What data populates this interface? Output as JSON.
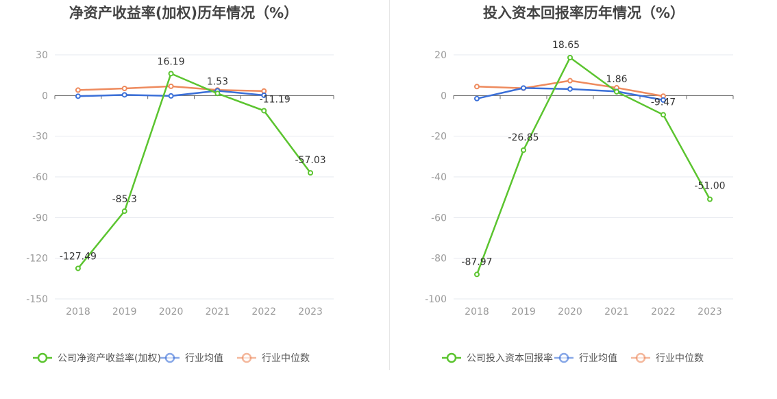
{
  "chart_data": [
    {
      "type": "line",
      "title": "净资产收益率(加权)历年情况（%）",
      "categories": [
        "2018",
        "2019",
        "2020",
        "2021",
        "2022",
        "2023"
      ],
      "ylim": [
        -150,
        30
      ],
      "yticks": [
        30,
        0,
        -30,
        -60,
        -90,
        -120,
        -150
      ],
      "grid": true,
      "legend_position": "bottom-left",
      "series": [
        {
          "name": "公司净资产收益率(加权)",
          "color": "#5bc42f",
          "values": [
            -127.49,
            -85.3,
            16.19,
            1.53,
            -11.19,
            -57.03
          ],
          "labels": [
            "-127.49",
            "-85.3",
            "16.19",
            "1.53",
            "-11.19",
            "-57.03"
          ]
        },
        {
          "name": "行业均值",
          "color": "#3a6fd8",
          "values": [
            -0.5,
            0.5,
            -0.3,
            3.5,
            0.2,
            null
          ]
        },
        {
          "name": "行业中位数",
          "color": "#ee8a5d",
          "values": [
            4.0,
            5.2,
            6.8,
            4.1,
            3.3,
            null
          ]
        }
      ]
    },
    {
      "type": "line",
      "title": "投入资本回报率历年情况（%）",
      "categories": [
        "2018",
        "2019",
        "2020",
        "2021",
        "2022",
        "2023"
      ],
      "ylim": [
        -100,
        20
      ],
      "yticks": [
        20,
        0,
        -20,
        -40,
        -60,
        -80,
        -100
      ],
      "grid": true,
      "legend_position": "bottom-left",
      "series": [
        {
          "name": "公司投入资本回报率",
          "color": "#5bc42f",
          "values": [
            -87.97,
            -26.85,
            18.65,
            1.86,
            -9.47,
            -51.0
          ],
          "labels": [
            "-87.97",
            "-26.85",
            "18.65",
            "1.86",
            "-9.47",
            "-51.00"
          ]
        },
        {
          "name": "行业均值",
          "color": "#3a6fd8",
          "values": [
            -1.5,
            3.7,
            3.2,
            2.0,
            -2.2,
            null
          ]
        },
        {
          "name": "行业中位数",
          "color": "#ee8a5d",
          "values": [
            4.4,
            3.6,
            7.3,
            3.8,
            -0.3,
            null
          ]
        }
      ]
    }
  ]
}
